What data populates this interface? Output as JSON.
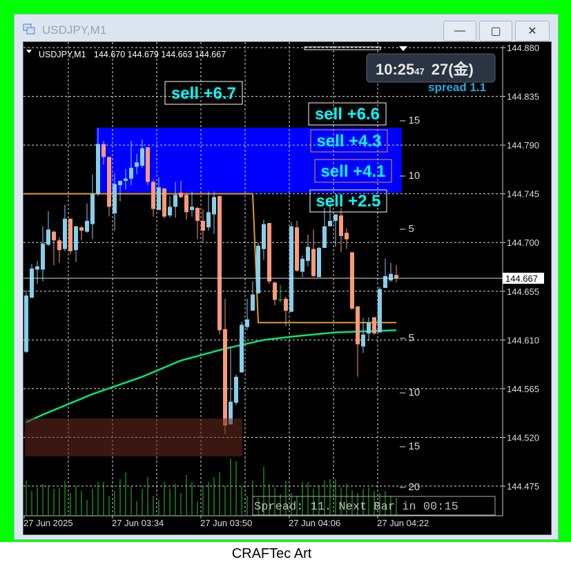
{
  "window": {
    "title": "USDJPY,M1",
    "buttons": {
      "minimize": "—",
      "maximize": "▢",
      "close": "✕"
    }
  },
  "chart_header": {
    "symbol": "USDJPY,M1",
    "ohlc": "144.670 144.679 144.663 144.667"
  },
  "clock": {
    "time": "10:25",
    "seconds": "47",
    "date": "27(金)",
    "spread": "spread 1.1"
  },
  "current_price": "144.667",
  "status_text": "Spread: 11. Next Bar in 00:15",
  "caption": "CRAFTec Art",
  "colors": {
    "bull": "#87ceeb",
    "bear": "#fa9a7a",
    "ma": "#00e676",
    "level": "#e0a020",
    "zone": "#0000ff",
    "signal": "#00ffff",
    "frame": "#00ff00"
  },
  "signals": [
    {
      "label": "sell +6.7"
    },
    {
      "label": "sell +6.6"
    },
    {
      "label": "sell +4.3"
    },
    {
      "label": "sell +4.1"
    },
    {
      "label": "sell +2.5"
    }
  ],
  "chart_data": {
    "type": "candlestick",
    "ylim": [
      144.46,
      144.895
    ],
    "price_ticks": [
      "144.880",
      "144.835",
      "144.790",
      "144.745",
      "144.700",
      "144.655",
      "144.610",
      "144.565",
      "144.520",
      "144.475"
    ],
    "time_ticks": [
      "27 Jun 2025",
      "27 Jun 03:34",
      "27 Jun 03:50",
      "27 Jun 04:06",
      "27 Jun 04:22"
    ],
    "pips_ticks": [
      "15",
      "10",
      "5",
      "5",
      "10",
      "15",
      "20"
    ],
    "candles": [
      [
        144.599,
        144.656,
        144.598,
        144.651
      ],
      [
        144.649,
        144.68,
        144.649,
        144.676
      ],
      [
        144.675,
        144.683,
        144.662,
        144.678
      ],
      [
        144.675,
        144.715,
        144.664,
        144.699
      ],
      [
        144.698,
        144.729,
        144.697,
        144.712
      ],
      [
        144.71,
        144.711,
        144.679,
        144.702
      ],
      [
        144.702,
        144.705,
        144.681,
        144.693
      ],
      [
        144.694,
        144.735,
        144.692,
        144.722
      ],
      [
        144.722,
        144.722,
        144.689,
        144.692
      ],
      [
        144.693,
        144.715,
        144.682,
        144.715
      ],
      [
        144.714,
        144.715,
        144.702,
        144.711
      ],
      [
        144.71,
        144.736,
        144.709,
        144.72
      ],
      [
        144.717,
        144.763,
        144.703,
        144.745
      ],
      [
        144.745,
        144.806,
        144.743,
        144.791
      ],
      [
        144.791,
        144.794,
        144.772,
        144.779
      ],
      [
        144.779,
        144.779,
        144.724,
        144.733
      ],
      [
        144.727,
        144.764,
        144.711,
        144.754
      ],
      [
        144.753,
        144.757,
        144.738,
        144.757
      ],
      [
        144.757,
        144.768,
        144.749,
        144.759
      ],
      [
        144.759,
        144.794,
        144.753,
        144.769
      ],
      [
        144.77,
        144.782,
        144.763,
        144.774
      ],
      [
        144.771,
        144.795,
        144.769,
        144.787
      ],
      [
        144.788,
        144.788,
        144.753,
        144.756
      ],
      [
        144.756,
        144.758,
        144.724,
        144.731
      ],
      [
        144.73,
        144.76,
        144.73,
        144.751
      ],
      [
        144.75,
        144.75,
        144.722,
        144.724
      ],
      [
        144.725,
        144.743,
        144.723,
        144.733
      ],
      [
        144.733,
        144.756,
        144.723,
        144.744
      ],
      [
        144.746,
        144.757,
        144.741,
        144.742
      ],
      [
        144.744,
        144.746,
        144.721,
        144.728
      ],
      [
        144.73,
        144.747,
        144.724,
        144.733
      ],
      [
        144.732,
        144.733,
        144.703,
        144.72
      ],
      [
        144.72,
        144.731,
        144.701,
        144.711
      ],
      [
        144.714,
        144.747,
        144.711,
        144.728
      ],
      [
        144.726,
        144.747,
        144.708,
        144.742
      ],
      [
        144.743,
        144.743,
        144.615,
        144.619
      ],
      [
        144.62,
        144.648,
        144.523,
        144.531
      ],
      [
        144.532,
        144.604,
        144.532,
        144.553
      ],
      [
        144.552,
        144.578,
        144.55,
        144.576
      ],
      [
        144.58,
        144.627,
        144.58,
        144.624
      ],
      [
        144.622,
        144.648,
        144.619,
        144.629
      ],
      [
        144.637,
        144.664,
        144.637,
        144.652
      ],
      [
        144.653,
        144.7,
        144.653,
        144.697
      ],
      [
        144.694,
        144.721,
        144.684,
        144.717
      ],
      [
        144.718,
        144.718,
        144.662,
        144.664
      ],
      [
        144.663,
        144.664,
        144.642,
        144.647
      ],
      [
        144.647,
        144.661,
        144.645,
        144.647
      ],
      [
        144.648,
        144.65,
        144.623,
        144.637
      ],
      [
        144.636,
        144.719,
        144.636,
        144.715
      ],
      [
        144.714,
        144.72,
        144.673,
        144.674
      ],
      [
        144.673,
        144.688,
        144.668,
        144.685
      ],
      [
        144.683,
        144.707,
        144.678,
        144.696
      ],
      [
        144.694,
        144.712,
        144.668,
        144.669
      ],
      [
        144.668,
        144.696,
        144.668,
        144.695
      ],
      [
        144.695,
        144.732,
        144.695,
        144.715
      ],
      [
        144.715,
        144.738,
        144.715,
        144.72
      ],
      [
        144.72,
        144.726,
        144.696,
        144.726
      ],
      [
        144.725,
        144.732,
        144.691,
        144.706
      ],
      [
        144.709,
        144.713,
        144.694,
        144.703
      ],
      [
        144.691,
        144.691,
        144.638,
        144.639
      ],
      [
        144.641,
        144.641,
        144.576,
        144.606
      ],
      [
        144.604,
        144.63,
        144.598,
        144.615
      ],
      [
        144.616,
        144.631,
        144.609,
        144.626
      ],
      [
        144.631,
        144.631,
        144.615,
        144.616
      ],
      [
        144.617,
        144.659,
        144.617,
        144.657
      ],
      [
        144.658,
        144.685,
        144.658,
        144.669
      ],
      [
        144.665,
        144.681,
        144.664,
        144.671
      ],
      [
        144.67,
        144.679,
        144.663,
        144.667
      ]
    ],
    "volumes": [
      50,
      35,
      40,
      45,
      42,
      38,
      40,
      50,
      32,
      42,
      35,
      22,
      38,
      48,
      48,
      28,
      35,
      52,
      62,
      42,
      20,
      38,
      55,
      28,
      22,
      48,
      38,
      45,
      32,
      58,
      48,
      20,
      42,
      48,
      55,
      62,
      42,
      82,
      78,
      42,
      28,
      50,
      25,
      70,
      45,
      40,
      30,
      50,
      32,
      28,
      48,
      48,
      38,
      42,
      50,
      52,
      52,
      40,
      45,
      36,
      32,
      38,
      40,
      35,
      32,
      35,
      28,
      25
    ],
    "ma": [
      [
        0,
        144.534
      ],
      [
        3,
        144.541
      ],
      [
        12,
        144.56
      ],
      [
        21,
        144.576
      ],
      [
        28,
        144.591
      ],
      [
        36,
        144.602
      ],
      [
        43,
        144.61
      ],
      [
        48,
        144.613
      ],
      [
        56,
        144.617
      ],
      [
        67,
        144.619
      ]
    ],
    "level_line": [
      [
        0,
        144.745
      ],
      [
        41,
        144.745
      ],
      [
        42,
        144.626
      ],
      [
        67,
        144.626
      ]
    ],
    "zone": {
      "from_index": 13,
      "to_index": 68,
      "top": 144.806,
      "bottom": 144.746
    }
  }
}
